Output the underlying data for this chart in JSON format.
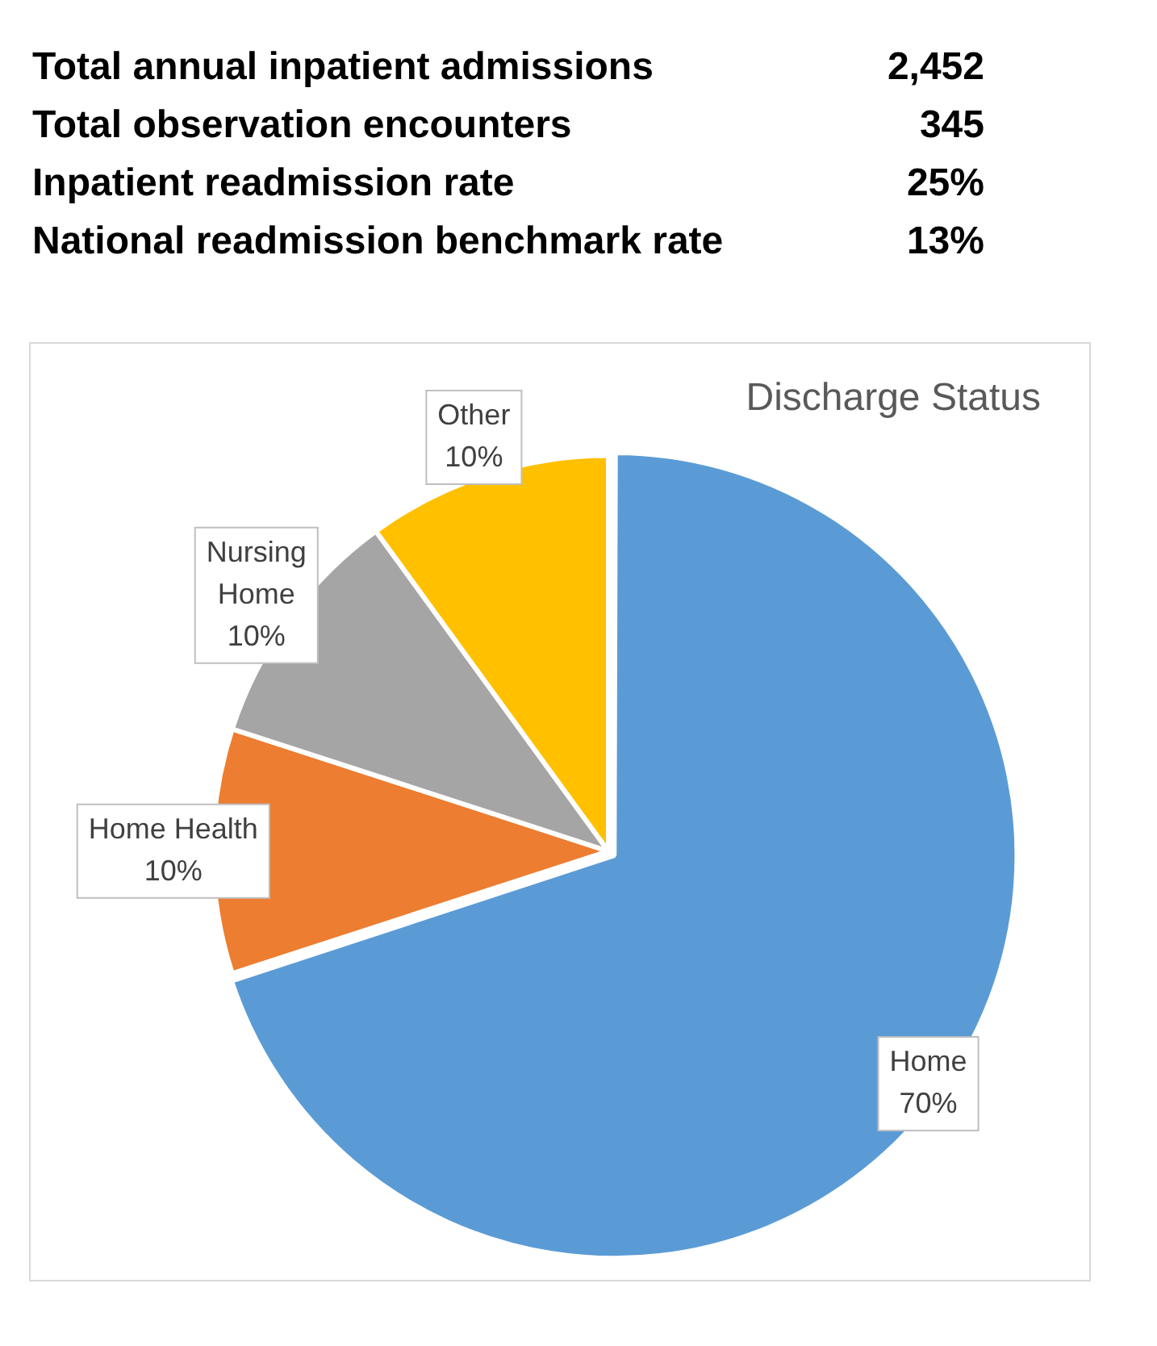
{
  "chart_data": [
    {
      "type": "other",
      "annotations": [
        "Total annual inpatient admissions",
        "2,452",
        "Total observation encounters",
        "345",
        "Inpatient readmission rate",
        "25%",
        "National readmission benchmark rate",
        "13%"
      ]
    },
    {
      "type": "pie",
      "title": "Discharge Status",
      "categories": [
        "Home",
        "Home Health",
        "Nursing Home",
        "Other"
      ],
      "values": [
        70,
        10,
        10,
        10
      ],
      "colors": [
        "#5b9bd5",
        "#ed7d31",
        "#a5a5a5",
        "#ffc000"
      ],
      "value_labels": [
        "70%",
        "10%",
        "10%",
        "10%"
      ],
      "legend": false
    }
  ]
}
